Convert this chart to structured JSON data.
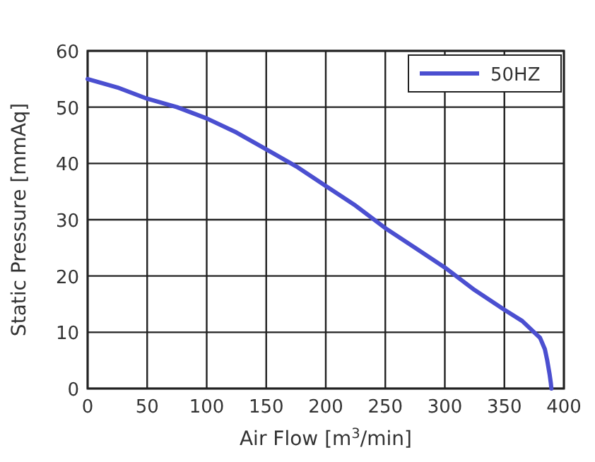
{
  "chart_data": {
    "type": "line",
    "xlabel": "Air Flow [m$^{3}$/min]",
    "ylabel": "Static Pressure [mmAq]",
    "series": [
      {
        "name": "50HZ",
        "color": "#4b4fd0",
        "x": [
          0,
          25,
          50,
          75,
          100,
          125,
          150,
          175,
          200,
          225,
          250,
          275,
          300,
          325,
          350,
          365,
          375,
          380,
          384,
          386,
          388,
          389,
          389.5
        ],
        "values": [
          55,
          53.5,
          51.5,
          50,
          48,
          45.5,
          42.5,
          39.5,
          36,
          32.5,
          28.5,
          25,
          21.5,
          17.5,
          14,
          12,
          10,
          9,
          7,
          5,
          2.5,
          1,
          0
        ]
      }
    ],
    "xlim": [
      0,
      400
    ],
    "xticks": [
      0,
      50,
      100,
      150,
      200,
      250,
      300,
      350,
      400
    ],
    "ylim": [
      0,
      60
    ],
    "yticks": [
      0,
      10,
      20,
      30,
      40,
      50,
      60
    ],
    "grid": true,
    "legend": "top right",
    "line_style": "solid",
    "marker": "none"
  }
}
